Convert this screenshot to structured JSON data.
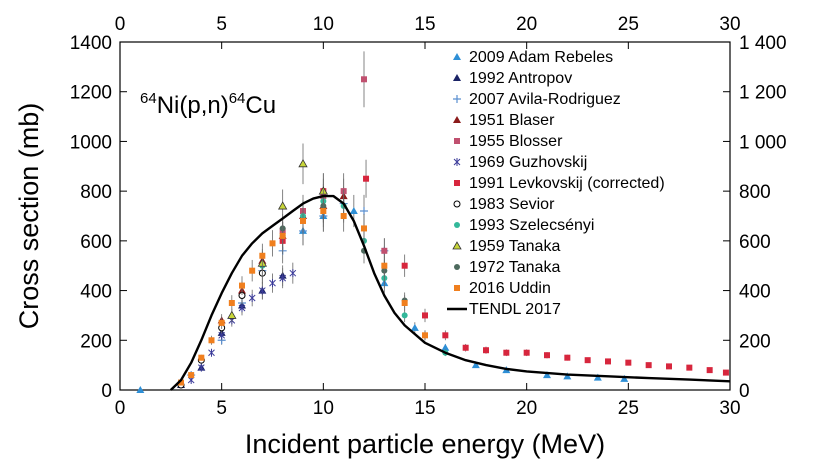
{
  "chart_data": {
    "type": "scatter",
    "title": "",
    "xlabel": "Incident particle energy (MeV)",
    "ylabel": "Cross section (mb)",
    "xlim": [
      0,
      30
    ],
    "ylim": [
      0,
      1400
    ],
    "x_ticks": [
      "0",
      "5",
      "10",
      "15",
      "20",
      "25",
      "30"
    ],
    "y_ticks_left": [
      "0",
      "200",
      "400",
      "600",
      "800",
      "1000",
      "1200",
      "1400"
    ],
    "y_ticks_right": [
      "0",
      "200",
      "400",
      "600",
      "800",
      "1 000",
      "1 200",
      "1 400"
    ],
    "annotation": {
      "mass1": "64",
      "text1": "Ni(p,n)",
      "mass2": "64",
      "text2": "Cu"
    },
    "legend_position": "top-right",
    "series": [
      {
        "name": "2009 Adam Rebeles",
        "marker": "triangle",
        "color": "#2e8fd6",
        "x": [
          1.0,
          9.0,
          10.0,
          11.5,
          13.0,
          14.5,
          16.0,
          17.5,
          19.0,
          21.0,
          22.0,
          23.5,
          24.8
        ],
        "y": [
          0,
          640,
          700,
          720,
          430,
          250,
          170,
          100,
          80,
          60,
          55,
          50,
          45
        ]
      },
      {
        "name": "1992 Antropov",
        "marker": "triangle",
        "color": "#1a2366",
        "x": [
          3.0,
          4.0,
          5.0,
          6.0,
          7.0,
          8.0
        ],
        "y": [
          20,
          90,
          230,
          340,
          400,
          460
        ]
      },
      {
        "name": "2007 Avila-Rodriguez",
        "marker": "plus",
        "color": "#5a8fd0",
        "x": [
          3.5,
          5.0,
          6.0,
          7.0,
          8.0,
          9.0,
          10.0,
          11.0,
          12.0,
          13.0
        ],
        "y": [
          60,
          200,
          350,
          480,
          560,
          640,
          700,
          750,
          720,
          560
        ]
      },
      {
        "name": "1951 Blaser",
        "marker": "triangle",
        "color": "#8b1a1a",
        "x": [
          5.0,
          6.0,
          7.0,
          8.0,
          9.0,
          10.0,
          11.0
        ],
        "y": [
          280,
          400,
          520,
          620,
          700,
          740,
          780
        ]
      },
      {
        "name": "1955 Blosser",
        "marker": "square",
        "color": "#c0506f",
        "x": [
          8.0,
          9.0,
          10.0,
          11.0,
          12.0,
          13.0
        ],
        "y": [
          640,
          720,
          780,
          800,
          1250,
          560
        ]
      },
      {
        "name": "1969 Guzhovskij",
        "marker": "star",
        "color": "#3b3b9a",
        "x": [
          3.5,
          4.0,
          4.5,
          5.0,
          5.5,
          6.0,
          6.5,
          7.0,
          7.5,
          8.0,
          8.5
        ],
        "y": [
          40,
          90,
          150,
          220,
          280,
          330,
          370,
          400,
          430,
          450,
          470
        ]
      },
      {
        "name": "1991 Levkovskij (corrected)",
        "marker": "square",
        "color": "#d7263d",
        "x": [
          8.0,
          10.0,
          12.1,
          14.0,
          15.0,
          16.0,
          17.0,
          18.0,
          19.0,
          20.0,
          21.0,
          22.0,
          23.0,
          24.0,
          25.0,
          26.0,
          27.0,
          28.0,
          29.0,
          29.8
        ],
        "y": [
          600,
          800,
          850,
          500,
          300,
          220,
          170,
          160,
          150,
          150,
          140,
          130,
          120,
          115,
          110,
          100,
          95,
          90,
          80,
          70
        ]
      },
      {
        "name": "1983 Sevior",
        "marker": "circle-open",
        "color": "#000000",
        "x": [
          3.0,
          4.0,
          5.0,
          6.0,
          7.0
        ],
        "y": [
          20,
          120,
          250,
          380,
          470
        ]
      },
      {
        "name": "1993 Szelecsényi",
        "marker": "circle",
        "color": "#33b89a",
        "x": [
          7.0,
          8.0,
          9.0,
          10.0,
          11.0,
          12.0,
          13.0,
          14.0,
          15.0,
          16.0
        ],
        "y": [
          500,
          620,
          700,
          760,
          740,
          600,
          450,
          300,
          220,
          150
        ]
      },
      {
        "name": "1959 Tanaka",
        "marker": "triangle",
        "color": "#c8d63a",
        "x": [
          5.5,
          7.0,
          8.0,
          9.0,
          10.0
        ],
        "y": [
          300,
          510,
          740,
          910,
          800
        ]
      },
      {
        "name": "1972 Tanaka",
        "marker": "circle",
        "color": "#4d6a5e",
        "x": [
          8.0,
          10.0,
          12.0,
          13.0,
          14.0
        ],
        "y": [
          650,
          740,
          560,
          480,
          360
        ]
      },
      {
        "name": "2016 Uddin",
        "marker": "square",
        "color": "#f07f1e",
        "x": [
          3.0,
          3.5,
          4.0,
          4.5,
          5.0,
          5.5,
          6.0,
          6.5,
          7.0,
          7.5,
          8.0,
          9.0,
          10.0,
          11.0,
          12.0,
          13.0,
          14.0,
          15.0
        ],
        "y": [
          30,
          60,
          130,
          200,
          270,
          350,
          420,
          480,
          540,
          590,
          620,
          680,
          720,
          700,
          650,
          500,
          350,
          220
        ]
      },
      {
        "name": "TENDL 2017",
        "marker": "line",
        "color": "#000000",
        "x": [
          2.5,
          3.0,
          3.5,
          4.0,
          4.5,
          5.0,
          5.5,
          6.0,
          6.5,
          7.0,
          7.5,
          8.0,
          8.5,
          9.0,
          9.5,
          10.0,
          10.5,
          11.0,
          11.5,
          12.0,
          12.5,
          13.0,
          13.5,
          14.0,
          15.0,
          16.0,
          17.0,
          18.0,
          19.0,
          20.0,
          22.0,
          24.0,
          26.0,
          28.0,
          30.0
        ],
        "y": [
          0,
          40,
          110,
          200,
          300,
          390,
          470,
          540,
          590,
          630,
          660,
          690,
          720,
          750,
          770,
          780,
          780,
          750,
          680,
          580,
          470,
          380,
          310,
          260,
          190,
          150,
          120,
          100,
          85,
          75,
          62,
          55,
          48,
          42,
          35
        ]
      }
    ]
  }
}
